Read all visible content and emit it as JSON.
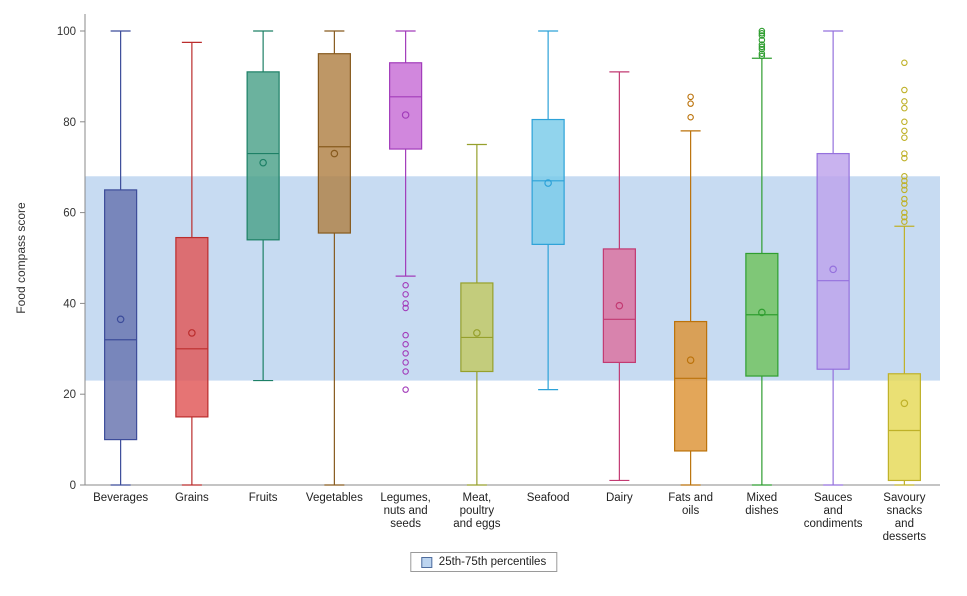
{
  "chart_data": {
    "type": "boxplot",
    "title": "",
    "xlabel": "",
    "ylabel": "Food compass score",
    "ylim": [
      0,
      100
    ],
    "yticks": [
      0,
      20,
      40,
      60,
      80,
      100
    ],
    "grid": false,
    "legend_position": "bottom-center",
    "legend_label": "25th-75th percentiles",
    "band": {
      "from": 23,
      "to": 68,
      "color": "#bdd5f0",
      "border": "#4f6d9e",
      "label": "25th-75th percentiles"
    },
    "categories": [
      {
        "label": "Beverages",
        "label_lines": [
          "Beverages"
        ],
        "fill": "#6673ae",
        "stroke": "#3c4c9a",
        "whisker_low": 0,
        "q1": 10,
        "median": 32,
        "mean": 36.5,
        "q3": 65,
        "whisker_high": 100,
        "outliers": []
      },
      {
        "label": "Grains",
        "label_lines": [
          "Grains"
        ],
        "fill": "#e05555",
        "stroke": "#bb2d2d",
        "whisker_low": 0,
        "q1": 15,
        "median": 30,
        "mean": 33.5,
        "q3": 54.5,
        "whisker_high": 97.5,
        "outliers": []
      },
      {
        "label": "Fruits",
        "label_lines": [
          "Fruits"
        ],
        "fill": "#4aa189",
        "stroke": "#1d8066",
        "whisker_low": 23,
        "q1": 54,
        "median": 73,
        "mean": 71,
        "q3": 91,
        "whisker_high": 100,
        "outliers": []
      },
      {
        "label": "Vegetables",
        "label_lines": [
          "Vegetables"
        ],
        "fill": "#b08044",
        "stroke": "#875a1e",
        "whisker_low": 0,
        "q1": 55.5,
        "median": 74.5,
        "mean": 73,
        "q3": 95,
        "whisker_high": 100,
        "outliers": []
      },
      {
        "label": "Legumes, nuts and seeds",
        "label_lines": [
          "Legumes,",
          "nuts and",
          "seeds"
        ],
        "fill": "#c76cd6",
        "stroke": "#a23cba",
        "whisker_low": 46,
        "q1": 74,
        "median": 85.5,
        "mean": 81.5,
        "q3": 93,
        "whisker_high": 100,
        "outliers": [
          44,
          42,
          40,
          39,
          33,
          31,
          29,
          27,
          25,
          21
        ]
      },
      {
        "label": "Meat, poultry and eggs",
        "label_lines": [
          "Meat,",
          "poultry",
          "and eggs"
        ],
        "fill": "#c2c862",
        "stroke": "#96a02c",
        "whisker_low": 0,
        "q1": 25,
        "median": 32.5,
        "mean": 33.5,
        "q3": 44.5,
        "whisker_high": 75,
        "outliers": []
      },
      {
        "label": "Seafood",
        "label_lines": [
          "Seafood"
        ],
        "fill": "#79cbe9",
        "stroke": "#2da2d8",
        "whisker_low": 21,
        "q1": 53,
        "median": 67,
        "mean": 66.5,
        "q3": 80.5,
        "whisker_high": 100,
        "outliers": []
      },
      {
        "label": "Dairy",
        "label_lines": [
          "Dairy"
        ],
        "fill": "#dc6f9e",
        "stroke": "#c23a72",
        "whisker_low": 1,
        "q1": 27,
        "median": 36.5,
        "mean": 39.5,
        "q3": 52,
        "whisker_high": 91,
        "outliers": []
      },
      {
        "label": "Fats and oils",
        "label_lines": [
          "Fats and",
          "oils"
        ],
        "fill": "#dd9334",
        "stroke": "#bb720a",
        "whisker_low": 0,
        "q1": 7.5,
        "median": 23.5,
        "mean": 27.5,
        "q3": 36,
        "whisker_high": 78,
        "outliers": [
          85.5,
          84,
          81
        ]
      },
      {
        "label": "Mixed dishes",
        "label_lines": [
          "Mixed",
          "dishes"
        ],
        "fill": "#6fc25c",
        "stroke": "#2f9e30",
        "whisker_low": 0,
        "q1": 24,
        "median": 37.5,
        "mean": 38,
        "q3": 51,
        "whisker_high": 94,
        "outliers": [
          100,
          99.5,
          99,
          98,
          97,
          96.5,
          96,
          95,
          94.5
        ]
      },
      {
        "label": "Sauces and condiments",
        "label_lines": [
          "Sauces",
          "and",
          "condiments"
        ],
        "fill": "#bda2ec",
        "stroke": "#9571dd",
        "whisker_low": 0,
        "q1": 25.5,
        "median": 45,
        "mean": 47.5,
        "q3": 73,
        "whisker_high": 100,
        "outliers": []
      },
      {
        "label": "Savoury snacks and desserts",
        "label_lines": [
          "Savoury",
          "snacks",
          "and",
          "desserts"
        ],
        "fill": "#e5d955",
        "stroke": "#bfb128",
        "whisker_low": 0,
        "q1": 1,
        "median": 12,
        "mean": 18,
        "q3": 24.5,
        "whisker_high": 57,
        "outliers": [
          93,
          87,
          84.5,
          83,
          80,
          78,
          76.5,
          73,
          72,
          68,
          67,
          66,
          65,
          63,
          62,
          60,
          59,
          58
        ]
      }
    ]
  }
}
